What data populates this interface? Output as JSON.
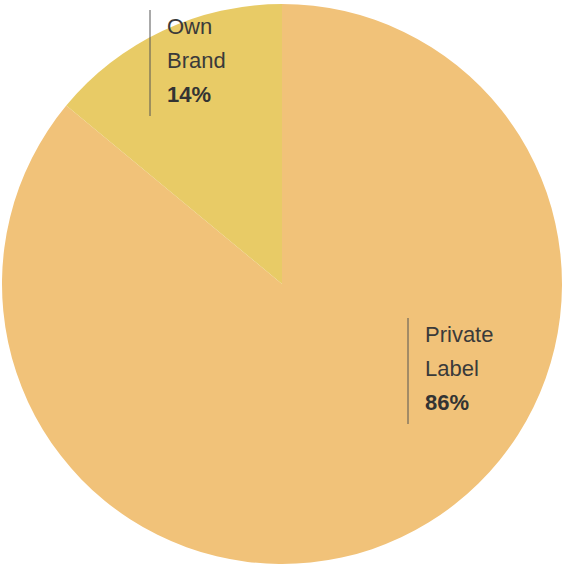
{
  "chart_data": {
    "type": "pie",
    "categories": [
      "Private Label",
      "Own Brand"
    ],
    "values": [
      86,
      14
    ],
    "value_labels": [
      "86%",
      "14%"
    ],
    "colors": [
      "#f1c279",
      "#e8cb66"
    ],
    "data_labels": true
  }
}
